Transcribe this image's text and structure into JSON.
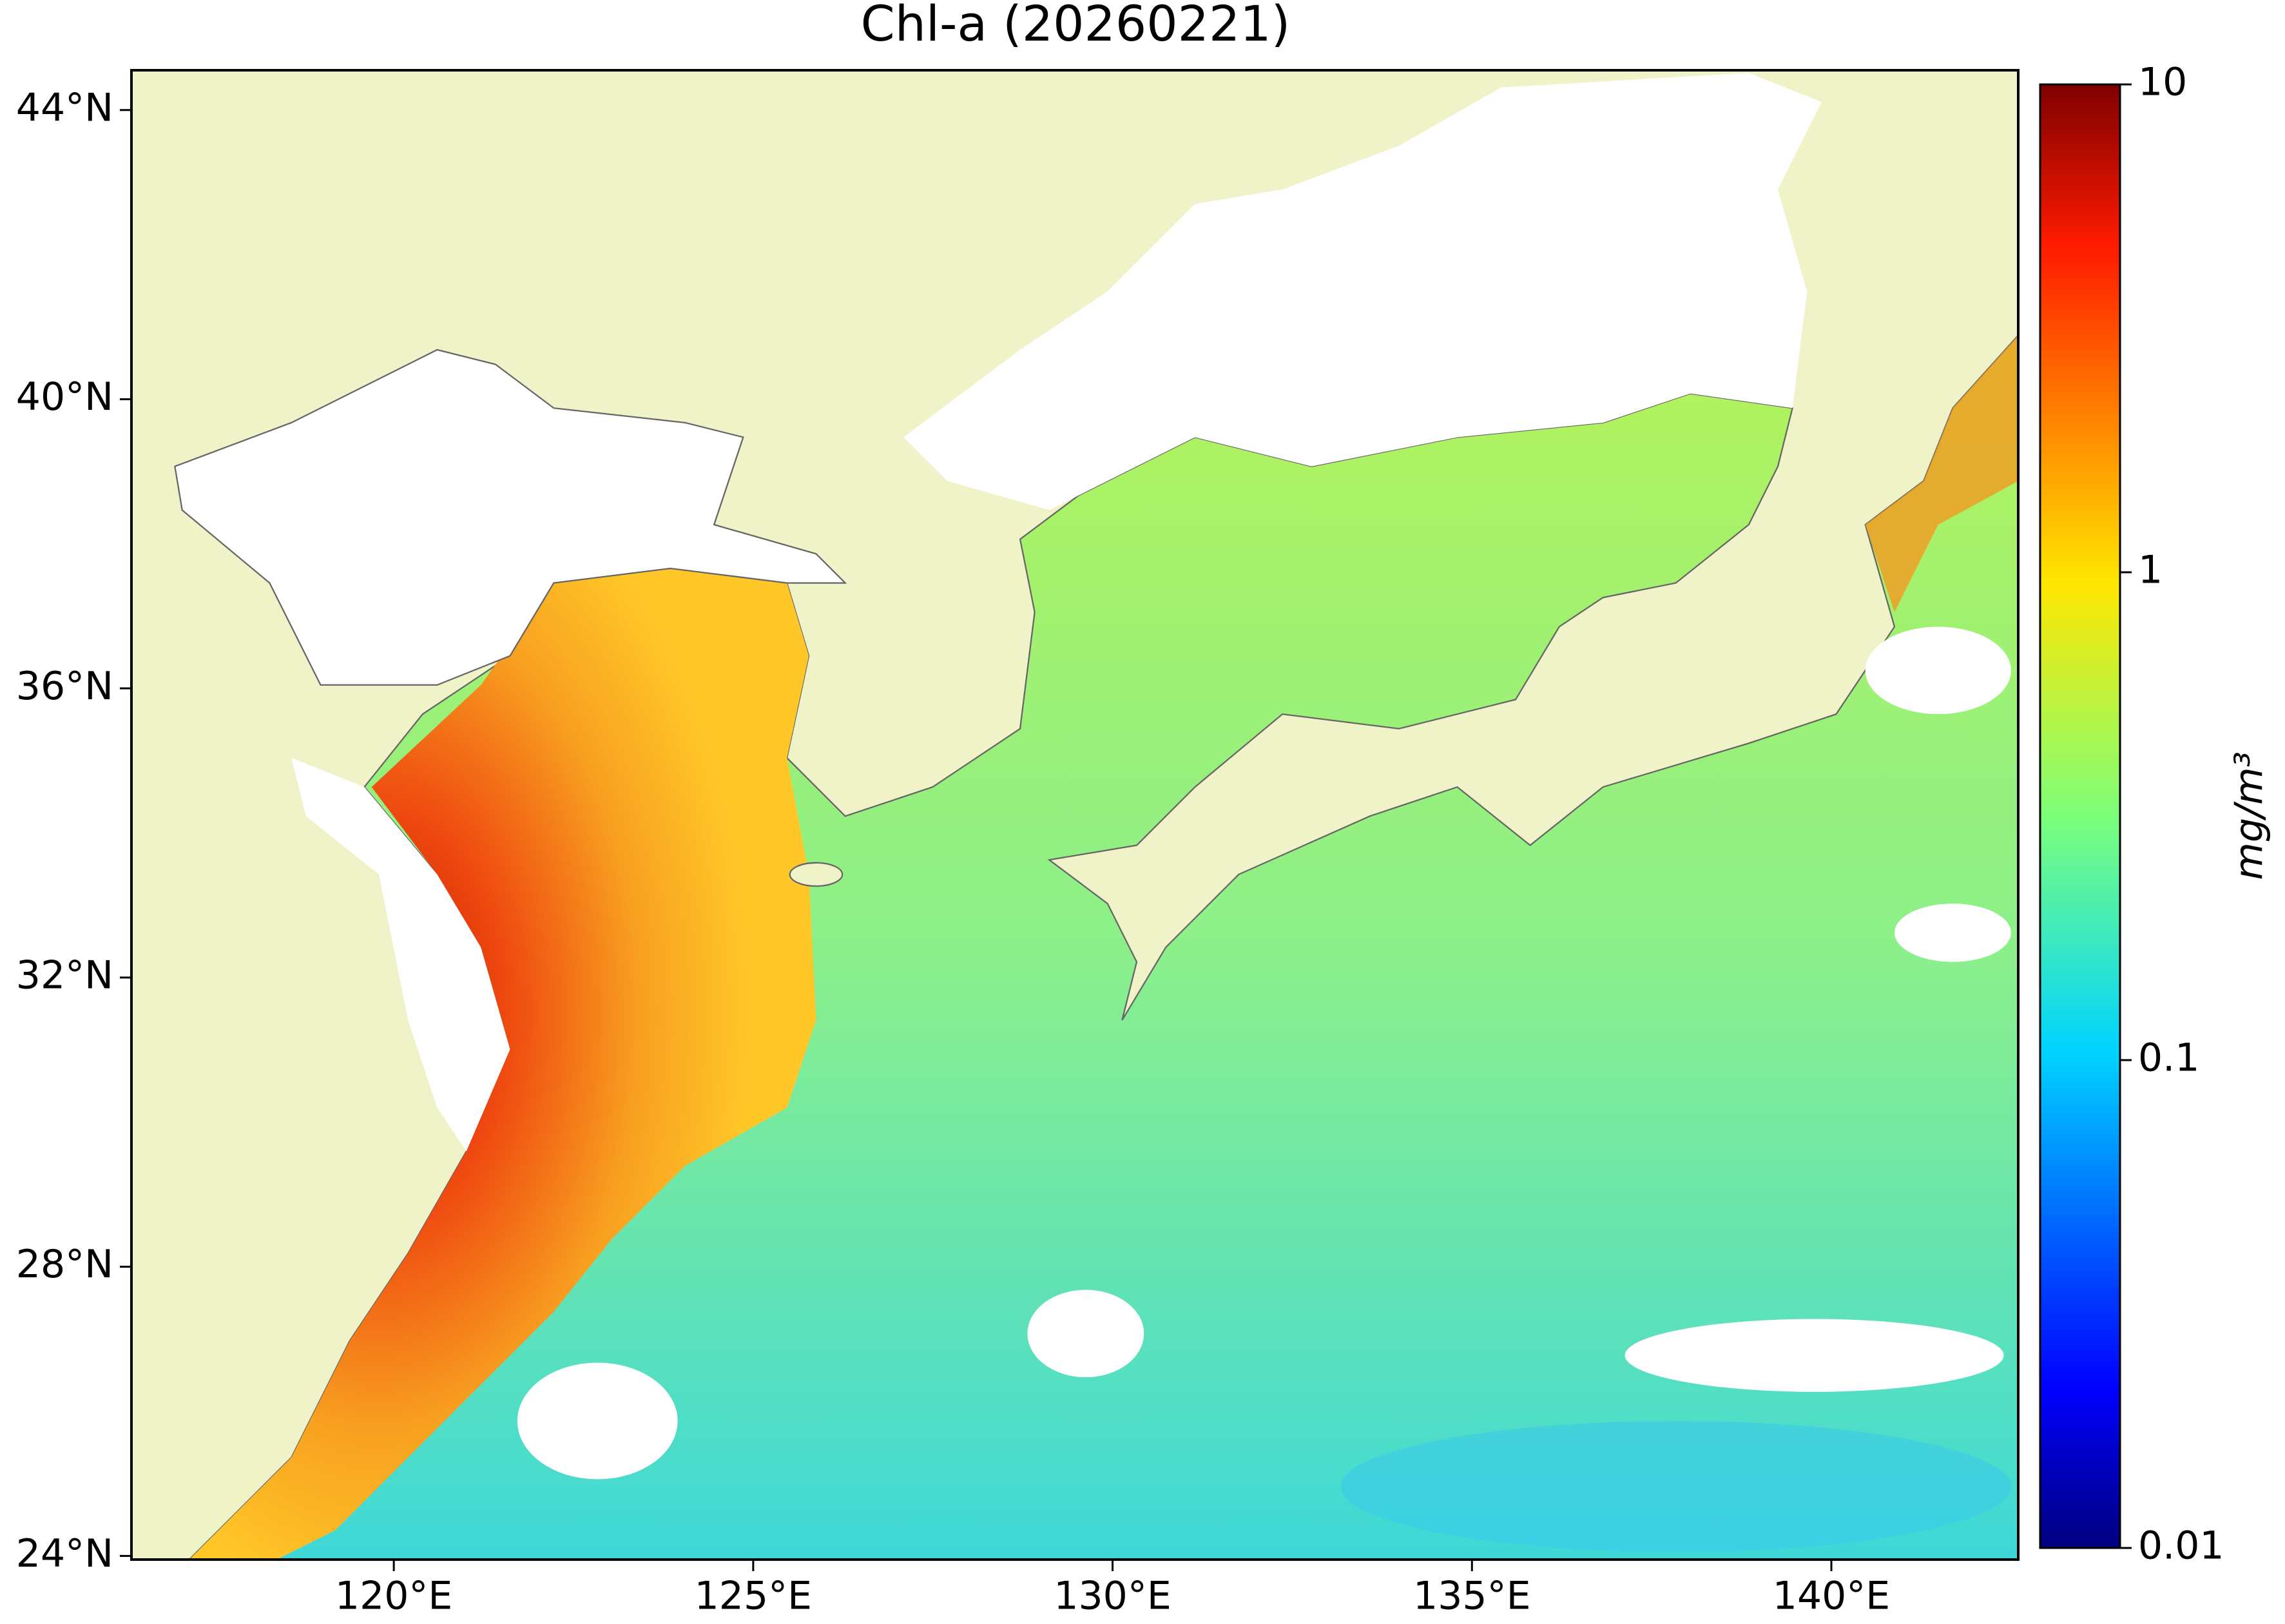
{
  "map": {
    "title": "Chl-a (20260221)",
    "xlim": [
      116.35,
      142.6
    ],
    "ylim": [
      23.95,
      44.55
    ],
    "xticks": [
      {
        "value": 120,
        "label": "120°E"
      },
      {
        "value": 125,
        "label": "125°E"
      },
      {
        "value": 130,
        "label": "130°E"
      },
      {
        "value": 135,
        "label": "135°E"
      },
      {
        "value": 140,
        "label": "140°E"
      }
    ],
    "yticks": [
      {
        "value": 24,
        "label": "24°N"
      },
      {
        "value": 28,
        "label": "28°N"
      },
      {
        "value": 32,
        "label": "32°N"
      },
      {
        "value": 36,
        "label": "36°N"
      },
      {
        "value": 40,
        "label": "40°N"
      },
      {
        "value": 44,
        "label": "44°N"
      }
    ],
    "colorbar": {
      "scale": "log",
      "lim": [
        0.01,
        10
      ],
      "ticks": [
        0.01,
        0.1,
        1,
        10
      ],
      "label": "mg/m³",
      "colormap": "jet"
    }
  }
}
